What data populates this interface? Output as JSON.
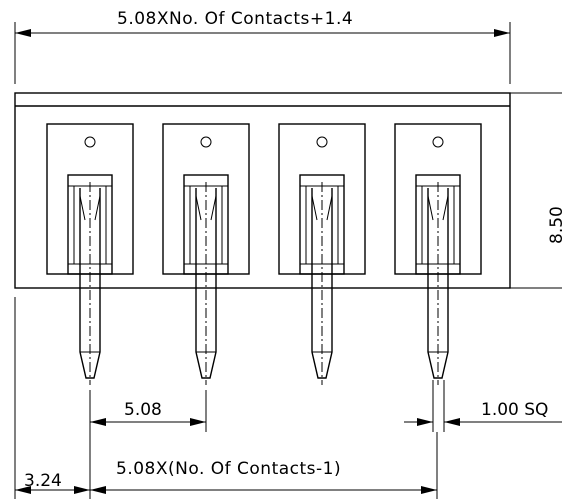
{
  "dimensions": {
    "overall_length": "5.08XNo. Of Contacts+1.4",
    "height": "8.50",
    "pitch": "5.08",
    "pin_size": "1.00 SQ",
    "edge_offset": "3.24",
    "pin_span": "5.08X(No. Of Contacts-1)"
  },
  "component": {
    "pin_count": 4
  }
}
